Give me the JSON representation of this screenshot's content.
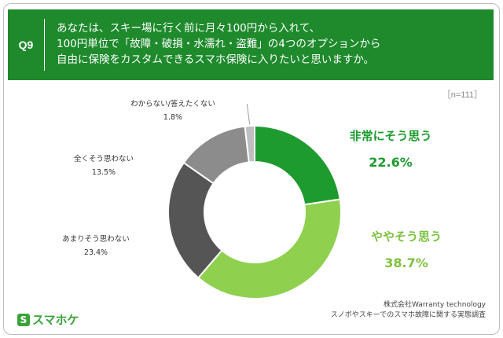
{
  "header": {
    "qnum": "Q9",
    "lines": [
      "あなたは、スキー場に行く前に月々100円から入れて、",
      "100円単位で「故障・破損・水濡れ・盗難」の4つのオプションから",
      "自由に保険をカスタムできるスマホ保険に入りたいと思いますか。"
    ]
  },
  "n_label": "［n=111］",
  "chart_data": {
    "type": "pie",
    "donut": true,
    "start": "12 o'clock, clockwise",
    "categories": [
      "非常にそう思う",
      "ややそう思う",
      "あまりそう思わない",
      "全くそう思わない",
      "わからない/答えたくない"
    ],
    "values": [
      22.6,
      38.7,
      23.4,
      13.5,
      1.8
    ],
    "value_labels": [
      "22.6%",
      "38.7%",
      "23.4%",
      "13.5%",
      "1.8%"
    ],
    "colors": [
      "#1e9b2f",
      "#8fd14f",
      "#555555",
      "#8c8c8c",
      "#bfbfbf"
    ],
    "label_colors": [
      "#1e9b2f",
      "#7cc240",
      "#333333",
      "#333333",
      "#333333"
    ]
  },
  "brand": {
    "mark": "S",
    "name": "スマホケ"
  },
  "source": {
    "company": "株式会社Warranty technology",
    "survey": "スノボやスキーでのスマホ故障に関する実態調査"
  }
}
